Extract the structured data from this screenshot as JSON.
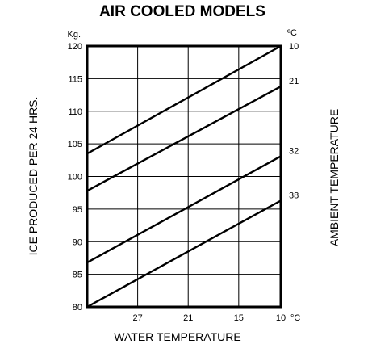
{
  "chart_data": {
    "type": "line",
    "title": "AIR COOLED MODELS",
    "xlabel": "WATER TEMPERATURE",
    "ylabel": "ICE PRODUCED PER 24 HRS.",
    "y_unit": "Kg.",
    "x_unit": "°C",
    "right_label": "AMBIENT TEMPERATURE",
    "right_unit": "ºC",
    "x_ticks": [
      27,
      21,
      15,
      10
    ],
    "x_range": [
      33,
      10
    ],
    "y_ticks": [
      120,
      115,
      110,
      105,
      100,
      95,
      90,
      85,
      80
    ],
    "ylim": [
      80,
      120
    ],
    "grid": true,
    "series": [
      {
        "name": "10",
        "points": [
          [
            33,
            103.5
          ],
          [
            10,
            120
          ]
        ]
      },
      {
        "name": "21",
        "points": [
          [
            33,
            97.8
          ],
          [
            10,
            113.8
          ]
        ]
      },
      {
        "name": "32",
        "points": [
          [
            33,
            86.8
          ],
          [
            10,
            103.1
          ]
        ]
      },
      {
        "name": "38",
        "points": [
          [
            33,
            80.0
          ],
          [
            10,
            96.3
          ]
        ]
      }
    ]
  }
}
